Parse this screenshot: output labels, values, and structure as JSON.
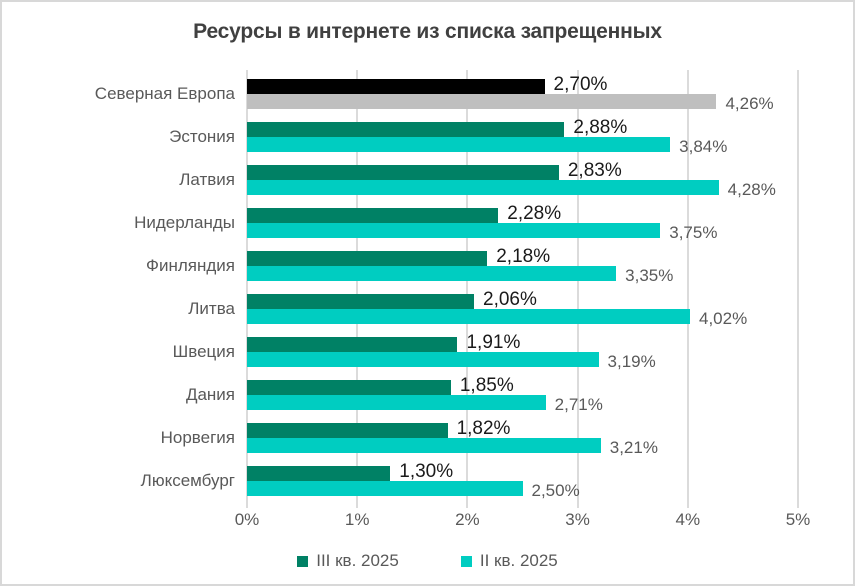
{
  "chart": {
    "title": "Ресурсы в интернете из списка запрещенных"
  },
  "chart_data": {
    "type": "bar",
    "orientation": "horizontal",
    "title": "Ресурсы в интернете из списка запрещенных",
    "categories": [
      "Северная Европа",
      "Эстония",
      "Латвия",
      "Нидерланды",
      "Финляндия",
      "Литва",
      "Швеция",
      "Дания",
      "Норвегия",
      "Люксембург"
    ],
    "series": [
      {
        "name": "III кв. 2025",
        "color": "#008165",
        "values": [
          2.7,
          2.88,
          2.83,
          2.28,
          2.18,
          2.06,
          1.91,
          1.85,
          1.82,
          1.3
        ],
        "labels": [
          "2,70%",
          "2,88%",
          "2,83%",
          "2,28%",
          "2,18%",
          "2,06%",
          "1,91%",
          "1,85%",
          "1,82%",
          "1,30%"
        ]
      },
      {
        "name": "II кв. 2025",
        "color": "#00cdc1",
        "values": [
          4.26,
          3.84,
          4.28,
          3.75,
          3.35,
          4.02,
          3.19,
          2.71,
          3.21,
          2.5
        ],
        "labels": [
          "4,26%",
          "3,84%",
          "4,28%",
          "3,75%",
          "3,35%",
          "4,02%",
          "3,19%",
          "2,71%",
          "3,21%",
          "2,50%"
        ]
      }
    ],
    "highlight_row": 0,
    "highlight_colors": [
      "#000000",
      "#bfbfbf"
    ],
    "xlim": [
      0,
      5
    ],
    "x_ticks": [
      "0%",
      "1%",
      "2%",
      "3%",
      "4%",
      "5%"
    ],
    "grid": true,
    "legend_position": "bottom",
    "value_labels_shown": true
  }
}
